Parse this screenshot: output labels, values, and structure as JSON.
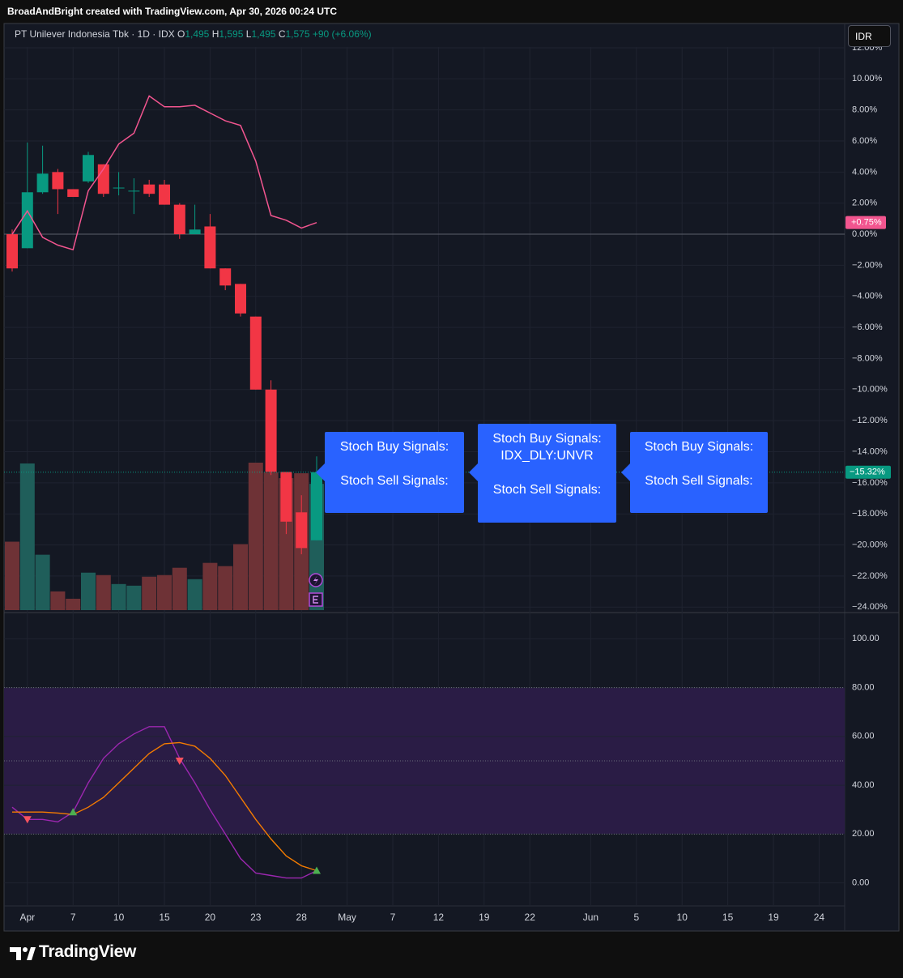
{
  "header": {
    "credit": "BroadAndBright created with TradingView.com, Apr 30, 2026 00:24 UTC"
  },
  "legend": {
    "symbol": "PT Unilever Indonesia Tbk · 1D · IDX",
    "open_label": "O",
    "open": "1,495",
    "high_label": "H",
    "high": "1,595",
    "low_label": "L",
    "low": "1,495",
    "close_label": "C",
    "close": "1,575",
    "change": "+90 (+6.06%)"
  },
  "currency": "IDR",
  "logo": "TradingView",
  "chart_data": [
    {
      "type": "candlestick",
      "categories": [
        null,
        "Apr",
        null,
        null,
        "7",
        null,
        null,
        "10",
        null,
        null,
        "15",
        null,
        null,
        "20",
        null,
        null,
        "23",
        null,
        null,
        "28",
        null,
        null,
        "May",
        null,
        null,
        "7",
        null,
        null,
        "12",
        null,
        null,
        "19",
        null,
        null,
        "22",
        null,
        null,
        null,
        "Jun",
        null,
        null,
        "5",
        null,
        null,
        "10",
        null,
        null,
        "15",
        null,
        null,
        "19",
        null,
        null,
        "24",
        null
      ],
      "open": [
        0,
        -0.9,
        2.7,
        4.0,
        2.9,
        3.4,
        4.5,
        3.0,
        2.8,
        3.2,
        3.2,
        1.9,
        0.0,
        0.5,
        -2.2,
        -3.2,
        -5.3,
        -10.0,
        -15.3,
        -17.9,
        -19.7,
        null,
        null,
        null,
        null,
        null,
        null,
        null,
        null,
        null,
        null,
        null,
        null,
        null,
        null,
        null,
        null,
        null,
        null,
        null,
        null,
        null,
        null,
        null,
        null,
        null,
        null,
        null,
        null,
        null,
        null,
        null,
        null,
        null,
        null
      ],
      "high": [
        0.3,
        5.9,
        5.7,
        4.2,
        2.9,
        5.3,
        4.5,
        4.0,
        3.6,
        3.5,
        3.5,
        2.0,
        1.9,
        1.3,
        -2.2,
        -3.2,
        -5.3,
        -9.4,
        -15.3,
        -16.8,
        -14.3,
        null,
        null,
        null,
        null,
        null,
        null,
        null,
        null,
        null,
        null,
        null,
        null,
        null,
        null,
        null,
        null,
        null,
        null,
        null,
        null,
        null,
        null,
        null,
        null,
        null,
        null,
        null,
        null,
        null,
        null,
        null,
        null,
        null,
        null
      ],
      "low": [
        -2.4,
        -0.9,
        2.6,
        1.3,
        2.4,
        3.3,
        2.4,
        2.5,
        1.3,
        2.4,
        1.9,
        -0.3,
        0.0,
        -2.2,
        -3.6,
        -5.3,
        -10.0,
        -15.5,
        -19.3,
        -20.6,
        -19.7,
        null,
        null,
        null,
        null,
        null,
        null,
        null,
        null,
        null,
        null,
        null,
        null,
        null,
        null,
        null,
        null,
        null,
        null,
        null,
        null,
        null,
        null,
        null,
        null,
        null,
        null,
        null,
        null,
        null,
        null,
        null,
        null,
        null,
        null
      ],
      "close": [
        -2.2,
        2.7,
        3.9,
        2.9,
        2.4,
        5.1,
        2.6,
        3.0,
        2.8,
        2.6,
        1.9,
        0.0,
        0.3,
        -2.2,
        -3.3,
        -5.1,
        -10.0,
        -15.3,
        -18.5,
        -20.2,
        -15.32,
        null,
        null,
        null,
        null,
        null,
        null,
        null,
        null,
        null,
        null,
        null,
        null,
        null,
        null,
        null,
        null,
        null,
        null,
        null,
        null,
        null,
        null,
        null,
        null,
        null,
        null,
        null,
        null,
        null,
        null,
        null,
        null,
        null,
        null
      ],
      "volume": [
        84,
        180,
        68,
        23,
        14,
        46,
        43,
        32,
        30,
        41,
        43,
        52,
        38,
        58,
        54,
        81,
        181,
        169,
        162,
        168,
        155,
        null,
        null,
        null,
        null,
        null,
        null,
        null,
        null,
        null,
        null,
        null,
        null,
        null,
        null,
        null,
        null,
        null,
        null,
        null,
        null,
        null,
        null,
        null,
        null,
        null,
        null,
        null,
        null,
        null,
        null,
        null,
        null,
        null,
        null
      ],
      "compare": {
        "color": "#f2558f",
        "values": [
          0.0,
          1.5,
          -0.2,
          -0.7,
          -1.0,
          2.8,
          4.2,
          5.8,
          6.5,
          8.9,
          8.2,
          8.2,
          8.3,
          7.8,
          7.3,
          7.0,
          4.7,
          1.2,
          0.9,
          0.4,
          0.75,
          null,
          null,
          null,
          null,
          null,
          null,
          null,
          null,
          null,
          null,
          null,
          null,
          null,
          null,
          null,
          null,
          null,
          null,
          null,
          null,
          null,
          null,
          null,
          null,
          null,
          null,
          null,
          null,
          null,
          null,
          null,
          null,
          null,
          null
        ],
        "last_label": "+0.75%"
      },
      "last_label": "−15.32%",
      "up_color": "#089981",
      "down_color": "#f23645",
      "volume_up_color": "#1f5e5a",
      "volume_down_color": "#6e3236",
      "ylim": [
        -24.3,
        12.05
      ],
      "yticks": [
        {
          "value": 12,
          "label": "12.00%"
        },
        {
          "value": 10,
          "label": "10.00%"
        },
        {
          "value": 8,
          "label": "8.00%"
        },
        {
          "value": 6,
          "label": "6.00%"
        },
        {
          "value": 4,
          "label": "4.00%"
        },
        {
          "value": 2,
          "label": "2.00%"
        },
        {
          "value": 0,
          "label": "0.00%"
        },
        {
          "value": -2,
          "label": "−2.00%"
        },
        {
          "value": -4,
          "label": "−4.00%"
        },
        {
          "value": -6,
          "label": "−6.00%"
        },
        {
          "value": -8,
          "label": "−8.00%"
        },
        {
          "value": -10,
          "label": "−10.00%"
        },
        {
          "value": -12,
          "label": "−12.00%"
        },
        {
          "value": -14,
          "label": "−14.00%"
        },
        {
          "value": -16,
          "label": "−16.00%"
        },
        {
          "value": -18,
          "label": "−18.00%"
        },
        {
          "value": -20,
          "label": "−20.00%"
        },
        {
          "value": -22,
          "label": "−22.00%"
        },
        {
          "value": -24,
          "label": "−24.00%"
        }
      ],
      "grid": true,
      "annotations": [
        {
          "lines": [
            "Stoch Buy Signals:",
            "Stoch Sell Signals:"
          ]
        },
        {
          "lines": [
            "Stoch Buy Signals:",
            "IDX_DLY:UNVR",
            "Stoch Sell Signals:"
          ]
        },
        {
          "lines": [
            "Stoch Buy Signals:",
            "Stoch Sell Signals:"
          ]
        }
      ]
    },
    {
      "type": "line",
      "series": [
        {
          "color": "#9c27b0",
          "values": [
            31,
            26,
            26,
            25,
            29,
            41,
            51,
            57,
            61,
            64,
            64,
            51,
            41,
            30,
            20,
            10,
            4,
            3,
            2,
            2,
            5,
            null,
            null,
            null,
            null,
            null,
            null,
            null,
            null,
            null,
            null,
            null,
            null,
            null,
            null,
            null,
            null,
            null,
            null,
            null,
            null,
            null,
            null,
            null,
            null,
            null,
            null,
            null,
            null,
            null,
            null,
            null,
            null,
            null,
            null
          ]
        },
        {
          "color": "#f57c00",
          "values": [
            29,
            29,
            29,
            28.6,
            28,
            31,
            35,
            41,
            47,
            53,
            57,
            57.5,
            56,
            51,
            44,
            35,
            26,
            18,
            11,
            7,
            5,
            null,
            null,
            null,
            null,
            null,
            null,
            null,
            null,
            null,
            null,
            null,
            null,
            null,
            null,
            null,
            null,
            null,
            null,
            null,
            null,
            null,
            null,
            null,
            null,
            null,
            null,
            null,
            null,
            null,
            null,
            null,
            null,
            null,
            null
          ]
        }
      ],
      "buy_signals": [
        null,
        null,
        null,
        null,
        29,
        null,
        null,
        null,
        null,
        null,
        null,
        null,
        null,
        null,
        null,
        null,
        null,
        null,
        null,
        null,
        5,
        null,
        null,
        null,
        null,
        null,
        null,
        null,
        null,
        null,
        null,
        null,
        null,
        null,
        null,
        null,
        null,
        null,
        null,
        null,
        null,
        null,
        null,
        null,
        null,
        null,
        null,
        null,
        null,
        null,
        null,
        null,
        null,
        null,
        null
      ],
      "sell_signals": [
        null,
        26,
        null,
        null,
        null,
        null,
        null,
        null,
        null,
        null,
        null,
        50,
        null,
        null,
        null,
        null,
        null,
        null,
        null,
        null,
        null,
        null,
        null,
        null,
        null,
        null,
        null,
        null,
        null,
        null,
        null,
        null,
        null,
        null,
        null,
        null,
        null,
        null,
        null,
        null,
        null,
        null,
        null,
        null,
        null,
        null,
        null,
        null,
        null,
        null,
        null,
        null,
        null,
        null,
        null
      ],
      "buy_color": "#4caf50",
      "sell_color": "#f7525f",
      "band": [
        20,
        80
      ],
      "band_color": "#2a1c45",
      "midline": 50,
      "ylim": [
        -9.1,
        110.4
      ],
      "yticks": [
        {
          "value": 0,
          "label": "0.00"
        },
        {
          "value": 20,
          "label": "20.00"
        },
        {
          "value": 40,
          "label": "40.00"
        },
        {
          "value": 60,
          "label": "60.00"
        },
        {
          "value": 80,
          "label": "80.00"
        },
        {
          "value": 100,
          "label": "100.00"
        }
      ],
      "grid": true
    }
  ]
}
